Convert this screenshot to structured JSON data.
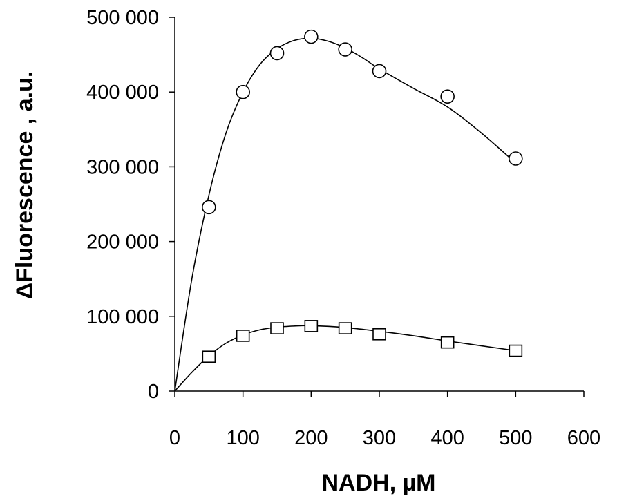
{
  "chart_data": {
    "type": "scatter",
    "xlabel": "NADH, µM",
    "ylabel": "ΔFluorescence , a.u.",
    "xlim": [
      0,
      600
    ],
    "ylim": [
      0,
      500000
    ],
    "x_ticks": [
      0,
      100,
      200,
      300,
      400,
      500,
      600
    ],
    "x_tick_labels": [
      "0",
      "100",
      "200",
      "300",
      "400",
      "500",
      "600"
    ],
    "y_ticks": [
      0,
      100000,
      200000,
      300000,
      400000,
      500000
    ],
    "y_tick_labels": [
      "0",
      "100 000",
      "200 000",
      "300 000",
      "400 000",
      "500 000"
    ],
    "grid": false,
    "series": [
      {
        "marker": "circle",
        "x": [
          50,
          100,
          150,
          200,
          250,
          300,
          400,
          500
        ],
        "y": [
          246000,
          400000,
          452000,
          474000,
          457000,
          428000,
          394000,
          311000
        ],
        "fit_x": [
          0,
          25,
          50,
          75,
          100,
          125,
          150,
          175,
          200,
          225,
          250,
          275,
          300,
          350,
          400,
          450,
          500
        ],
        "fit_y": [
          0,
          150000,
          262000,
          345000,
          400000,
          437000,
          458000,
          469000,
          472000,
          468000,
          459000,
          446000,
          431000,
          405000,
          380000,
          345000,
          305000
        ]
      },
      {
        "marker": "square",
        "x": [
          50,
          100,
          150,
          200,
          250,
          300,
          400,
          500
        ],
        "y": [
          46000,
          74000,
          84000,
          87000,
          84000,
          76000,
          65000,
          54000
        ],
        "fit_x": [
          0,
          25,
          50,
          75,
          100,
          125,
          150,
          175,
          200,
          250,
          300,
          350,
          400,
          450,
          500
        ],
        "fit_y": [
          0,
          25000,
          47000,
          64000,
          75000,
          82000,
          85500,
          87000,
          87500,
          85000,
          80000,
          74000,
          67000,
          60500,
          54000
        ]
      }
    ]
  }
}
